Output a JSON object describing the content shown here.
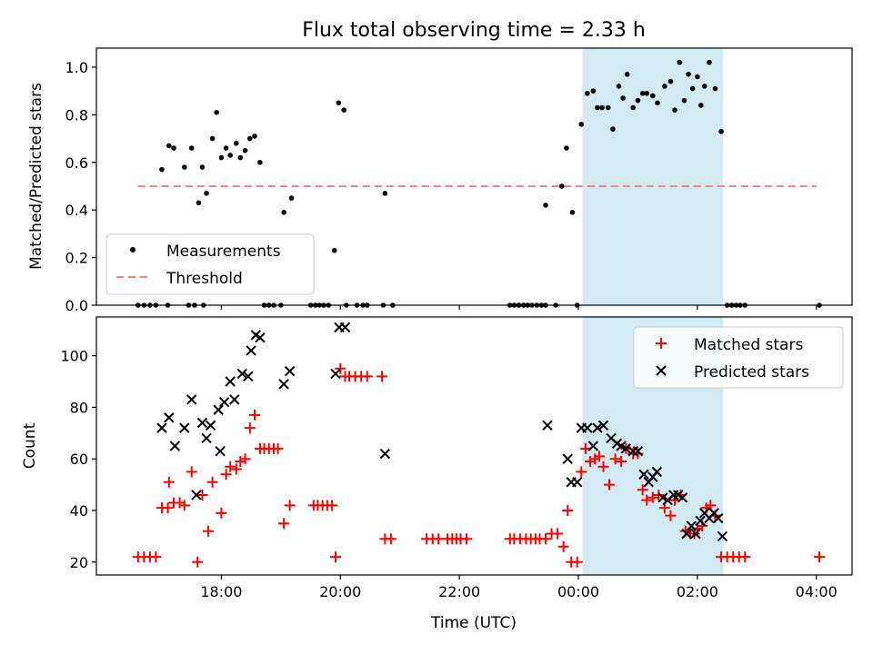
{
  "title": "Flux total observing time = 2.33 h",
  "xlabel": "Time (UTC)",
  "x_tick_labels": [
    "18:00",
    "20:00",
    "22:00",
    "00:00",
    "02:00",
    "04:00"
  ],
  "colors": {
    "measurement": "#000000",
    "threshold": "#ff7f7f",
    "matched": "#ff0000",
    "predicted": "#000000",
    "highlight": "#add8e6"
  },
  "chart_data": [
    {
      "type": "scatter",
      "ylabel": "Matched/Predicted stars",
      "ylim": [
        0,
        1.08
      ],
      "y_tick_labels": [
        "0.0",
        "0.2",
        "0.4",
        "0.6",
        "0.8",
        "1.0"
      ],
      "xlim_hours": [
        15.9,
        28.6
      ],
      "highlight_span_hours": [
        24.07,
        26.43
      ],
      "legend": {
        "placement": "lower-left",
        "entries": [
          "Measurements",
          "Threshold"
        ]
      },
      "threshold": {
        "name": "Threshold",
        "x_hours": [
          16.6,
          28.0
        ],
        "y": 0.5
      },
      "series": [
        {
          "name": "Measurements",
          "points": [
            [
              16.6,
              0
            ],
            [
              16.7,
              0
            ],
            [
              16.8,
              0
            ],
            [
              16.9,
              0
            ],
            [
              17.1,
              0
            ],
            [
              17.45,
              0
            ],
            [
              17.55,
              0
            ],
            [
              17.7,
              0
            ],
            [
              17.0,
              0.57
            ],
            [
              17.12,
              0.67
            ],
            [
              17.2,
              0.66
            ],
            [
              17.38,
              0.58
            ],
            [
              17.5,
              0.66
            ],
            [
              17.62,
              0.43
            ],
            [
              17.68,
              0.58
            ],
            [
              17.75,
              0.47
            ],
            [
              17.85,
              0.7
            ],
            [
              17.92,
              0.81
            ],
            [
              18.0,
              0.62
            ],
            [
              18.08,
              0.66
            ],
            [
              18.15,
              0.63
            ],
            [
              18.25,
              0.68
            ],
            [
              18.32,
              0.62
            ],
            [
              18.4,
              0.65
            ],
            [
              18.48,
              0.7
            ],
            [
              18.56,
              0.71
            ],
            [
              18.65,
              0.6
            ],
            [
              18.72,
              0
            ],
            [
              18.8,
              0
            ],
            [
              18.88,
              0
            ],
            [
              19.0,
              0
            ],
            [
              19.05,
              0.39
            ],
            [
              19.18,
              0.45
            ],
            [
              19.5,
              0
            ],
            [
              19.58,
              0
            ],
            [
              19.65,
              0
            ],
            [
              19.72,
              0
            ],
            [
              19.8,
              0
            ],
            [
              19.9,
              0.23
            ],
            [
              19.97,
              0.85
            ],
            [
              20.06,
              0.82
            ],
            [
              20.1,
              0
            ],
            [
              20.28,
              0
            ],
            [
              20.38,
              0
            ],
            [
              20.45,
              0
            ],
            [
              20.72,
              0
            ],
            [
              20.75,
              0.47
            ],
            [
              20.88,
              0
            ],
            [
              22.85,
              0
            ],
            [
              22.92,
              0
            ],
            [
              23.0,
              0
            ],
            [
              23.08,
              0
            ],
            [
              23.15,
              0
            ],
            [
              23.22,
              0
            ],
            [
              23.3,
              0
            ],
            [
              23.38,
              0
            ],
            [
              23.45,
              0
            ],
            [
              23.45,
              0.42
            ],
            [
              23.62,
              0
            ],
            [
              23.72,
              0.5
            ],
            [
              23.8,
              0.66
            ],
            [
              23.9,
              0.39
            ],
            [
              23.98,
              0
            ],
            [
              24.05,
              0.76
            ],
            [
              24.15,
              0.89
            ],
            [
              24.25,
              0.9
            ],
            [
              24.32,
              0.83
            ],
            [
              24.4,
              0.83
            ],
            [
              24.5,
              0.83
            ],
            [
              24.58,
              0.74
            ],
            [
              24.68,
              0.92
            ],
            [
              24.75,
              0.87
            ],
            [
              24.82,
              0.97
            ],
            [
              24.92,
              0.83
            ],
            [
              25.0,
              0.86
            ],
            [
              25.08,
              0.89
            ],
            [
              25.15,
              0.89
            ],
            [
              25.25,
              0.88
            ],
            [
              25.33,
              0.85
            ],
            [
              25.45,
              0.92
            ],
            [
              25.55,
              0.94
            ],
            [
              25.62,
              0.82
            ],
            [
              25.7,
              1.02
            ],
            [
              25.78,
              0.86
            ],
            [
              25.85,
              0.97
            ],
            [
              25.92,
              0.91
            ],
            [
              26.0,
              0.96
            ],
            [
              26.06,
              0.84
            ],
            [
              26.12,
              0.92
            ],
            [
              26.2,
              1.02
            ],
            [
              26.3,
              0.91
            ],
            [
              26.4,
              0.73
            ],
            [
              26.5,
              0
            ],
            [
              26.58,
              0
            ],
            [
              26.65,
              0
            ],
            [
              26.72,
              0
            ],
            [
              26.8,
              0
            ],
            [
              28.05,
              0
            ]
          ]
        }
      ]
    },
    {
      "type": "scatter",
      "ylabel": "Count",
      "ylim": [
        15,
        115
      ],
      "y_tick_labels": [
        "20",
        "40",
        "60",
        "80",
        "100"
      ],
      "xlim_hours": [
        15.9,
        28.6
      ],
      "highlight_span_hours": [
        24.07,
        26.43
      ],
      "legend": {
        "placement": "top-right",
        "entries": [
          "Matched stars",
          "Predicted stars"
        ]
      },
      "series": [
        {
          "name": "Matched stars",
          "points": [
            [
              16.6,
              22
            ],
            [
              16.7,
              22
            ],
            [
              16.8,
              22
            ],
            [
              16.9,
              22
            ],
            [
              17.0,
              41
            ],
            [
              17.1,
              41
            ],
            [
              17.12,
              51
            ],
            [
              17.2,
              43
            ],
            [
              17.3,
              43
            ],
            [
              17.38,
              42
            ],
            [
              17.5,
              55
            ],
            [
              17.6,
              20
            ],
            [
              17.68,
              46
            ],
            [
              17.78,
              32
            ],
            [
              17.85,
              51
            ],
            [
              18.0,
              39
            ],
            [
              18.08,
              54
            ],
            [
              18.15,
              57
            ],
            [
              18.25,
              56
            ],
            [
              18.32,
              59
            ],
            [
              18.4,
              60
            ],
            [
              18.48,
              72
            ],
            [
              18.56,
              77
            ],
            [
              18.65,
              64
            ],
            [
              18.72,
              64
            ],
            [
              18.8,
              64
            ],
            [
              18.88,
              64
            ],
            [
              18.95,
              64
            ],
            [
              19.05,
              35
            ],
            [
              19.15,
              42
            ],
            [
              19.55,
              42
            ],
            [
              19.62,
              42
            ],
            [
              19.7,
              42
            ],
            [
              19.78,
              42
            ],
            [
              19.86,
              42
            ],
            [
              19.92,
              22
            ],
            [
              20.0,
              95
            ],
            [
              20.08,
              92
            ],
            [
              20.15,
              92
            ],
            [
              20.25,
              92
            ],
            [
              20.35,
              92
            ],
            [
              20.45,
              92
            ],
            [
              20.7,
              92
            ],
            [
              20.75,
              29
            ],
            [
              20.85,
              29
            ],
            [
              21.45,
              29
            ],
            [
              21.55,
              29
            ],
            [
              21.65,
              29
            ],
            [
              21.8,
              29
            ],
            [
              21.88,
              29
            ],
            [
              21.95,
              29
            ],
            [
              22.02,
              29
            ],
            [
              22.12,
              29
            ],
            [
              22.85,
              29
            ],
            [
              22.92,
              29
            ],
            [
              23.02,
              29
            ],
            [
              23.12,
              29
            ],
            [
              23.2,
              29
            ],
            [
              23.28,
              29
            ],
            [
              23.35,
              29
            ],
            [
              23.45,
              29
            ],
            [
              23.55,
              31
            ],
            [
              23.65,
              31
            ],
            [
              23.75,
              26
            ],
            [
              23.82,
              40
            ],
            [
              23.88,
              20
            ],
            [
              23.98,
              20
            ],
            [
              24.05,
              55
            ],
            [
              24.12,
              64
            ],
            [
              24.2,
              59
            ],
            [
              24.28,
              60
            ],
            [
              24.35,
              61
            ],
            [
              24.42,
              57
            ],
            [
              24.52,
              50
            ],
            [
              24.62,
              60
            ],
            [
              24.72,
              59
            ],
            [
              24.8,
              64
            ],
            [
              24.92,
              62
            ],
            [
              25.0,
              62
            ],
            [
              25.08,
              48
            ],
            [
              25.15,
              44
            ],
            [
              25.25,
              45
            ],
            [
              25.35,
              46
            ],
            [
              25.45,
              41
            ],
            [
              25.55,
              38
            ],
            [
              25.62,
              44
            ],
            [
              25.72,
              46
            ],
            [
              25.8,
              32
            ],
            [
              25.88,
              31
            ],
            [
              25.95,
              31
            ],
            [
              26.0,
              33
            ],
            [
              26.08,
              34
            ],
            [
              26.15,
              41
            ],
            [
              26.22,
              42
            ],
            [
              26.3,
              38
            ],
            [
              26.4,
              22
            ],
            [
              26.5,
              22
            ],
            [
              26.6,
              22
            ],
            [
              26.7,
              22
            ],
            [
              26.8,
              22
            ],
            [
              28.05,
              22
            ]
          ]
        },
        {
          "name": "Predicted stars",
          "points": [
            [
              17.0,
              72
            ],
            [
              17.12,
              76
            ],
            [
              17.22,
              65
            ],
            [
              17.38,
              72
            ],
            [
              17.5,
              83
            ],
            [
              17.58,
              46
            ],
            [
              17.68,
              74
            ],
            [
              17.75,
              68
            ],
            [
              17.82,
              73
            ],
            [
              17.95,
              79
            ],
            [
              17.98,
              63
            ],
            [
              18.05,
              82
            ],
            [
              18.15,
              90
            ],
            [
              18.22,
              83
            ],
            [
              18.35,
              93
            ],
            [
              18.45,
              92
            ],
            [
              18.5,
              102
            ],
            [
              18.58,
              108
            ],
            [
              18.65,
              107
            ],
            [
              19.05,
              89
            ],
            [
              19.15,
              94
            ],
            [
              19.92,
              93
            ],
            [
              19.98,
              111
            ],
            [
              20.08,
              111
            ],
            [
              20.75,
              62
            ],
            [
              23.48,
              73
            ],
            [
              23.82,
              60
            ],
            [
              23.88,
              51
            ],
            [
              23.98,
              51
            ],
            [
              24.05,
              72
            ],
            [
              24.15,
              72
            ],
            [
              24.25,
              65
            ],
            [
              24.32,
              72
            ],
            [
              24.42,
              73
            ],
            [
              24.55,
              68
            ],
            [
              24.65,
              66
            ],
            [
              24.72,
              65
            ],
            [
              24.8,
              64
            ],
            [
              24.92,
              63
            ],
            [
              25.0,
              63
            ],
            [
              25.1,
              54
            ],
            [
              25.18,
              51
            ],
            [
              25.25,
              53
            ],
            [
              25.32,
              55
            ],
            [
              25.42,
              45
            ],
            [
              25.5,
              44
            ],
            [
              25.6,
              46
            ],
            [
              25.68,
              46
            ],
            [
              25.75,
              45
            ],
            [
              25.82,
              31
            ],
            [
              25.9,
              34
            ],
            [
              25.97,
              31
            ],
            [
              26.05,
              36
            ],
            [
              26.12,
              39
            ],
            [
              26.2,
              37
            ],
            [
              26.28,
              39
            ],
            [
              26.35,
              37
            ],
            [
              26.42,
              30
            ]
          ]
        }
      ]
    }
  ]
}
